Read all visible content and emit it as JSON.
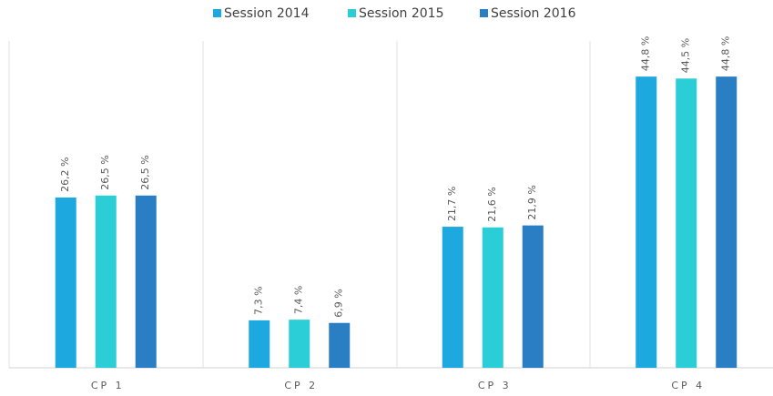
{
  "chart_data": {
    "type": "bar",
    "categories": [
      "CP 1",
      "CP 2",
      "CP 3",
      "CP 4"
    ],
    "series": [
      {
        "name": "Session 2014",
        "color": "#1ea8e0",
        "values": [
          26.2,
          7.3,
          21.7,
          44.8
        ],
        "value_labels": [
          "26,2 %",
          "7,3 %",
          "21,7 %",
          "44,8 %"
        ]
      },
      {
        "name": "Session 2015",
        "color": "#2bcdd6",
        "values": [
          26.5,
          7.4,
          21.6,
          44.5
        ],
        "value_labels": [
          "26,5 %",
          "7,4 %",
          "21,6 %",
          "44,5 %"
        ]
      },
      {
        "name": "Session 2016",
        "color": "#2a7fc4",
        "values": [
          26.5,
          6.9,
          21.9,
          44.8
        ],
        "value_labels": [
          "26,5 %",
          "6,9 %",
          "21,9 %",
          "44,8 %"
        ]
      }
    ],
    "ylim": [
      0,
      50
    ],
    "legend": "top"
  }
}
